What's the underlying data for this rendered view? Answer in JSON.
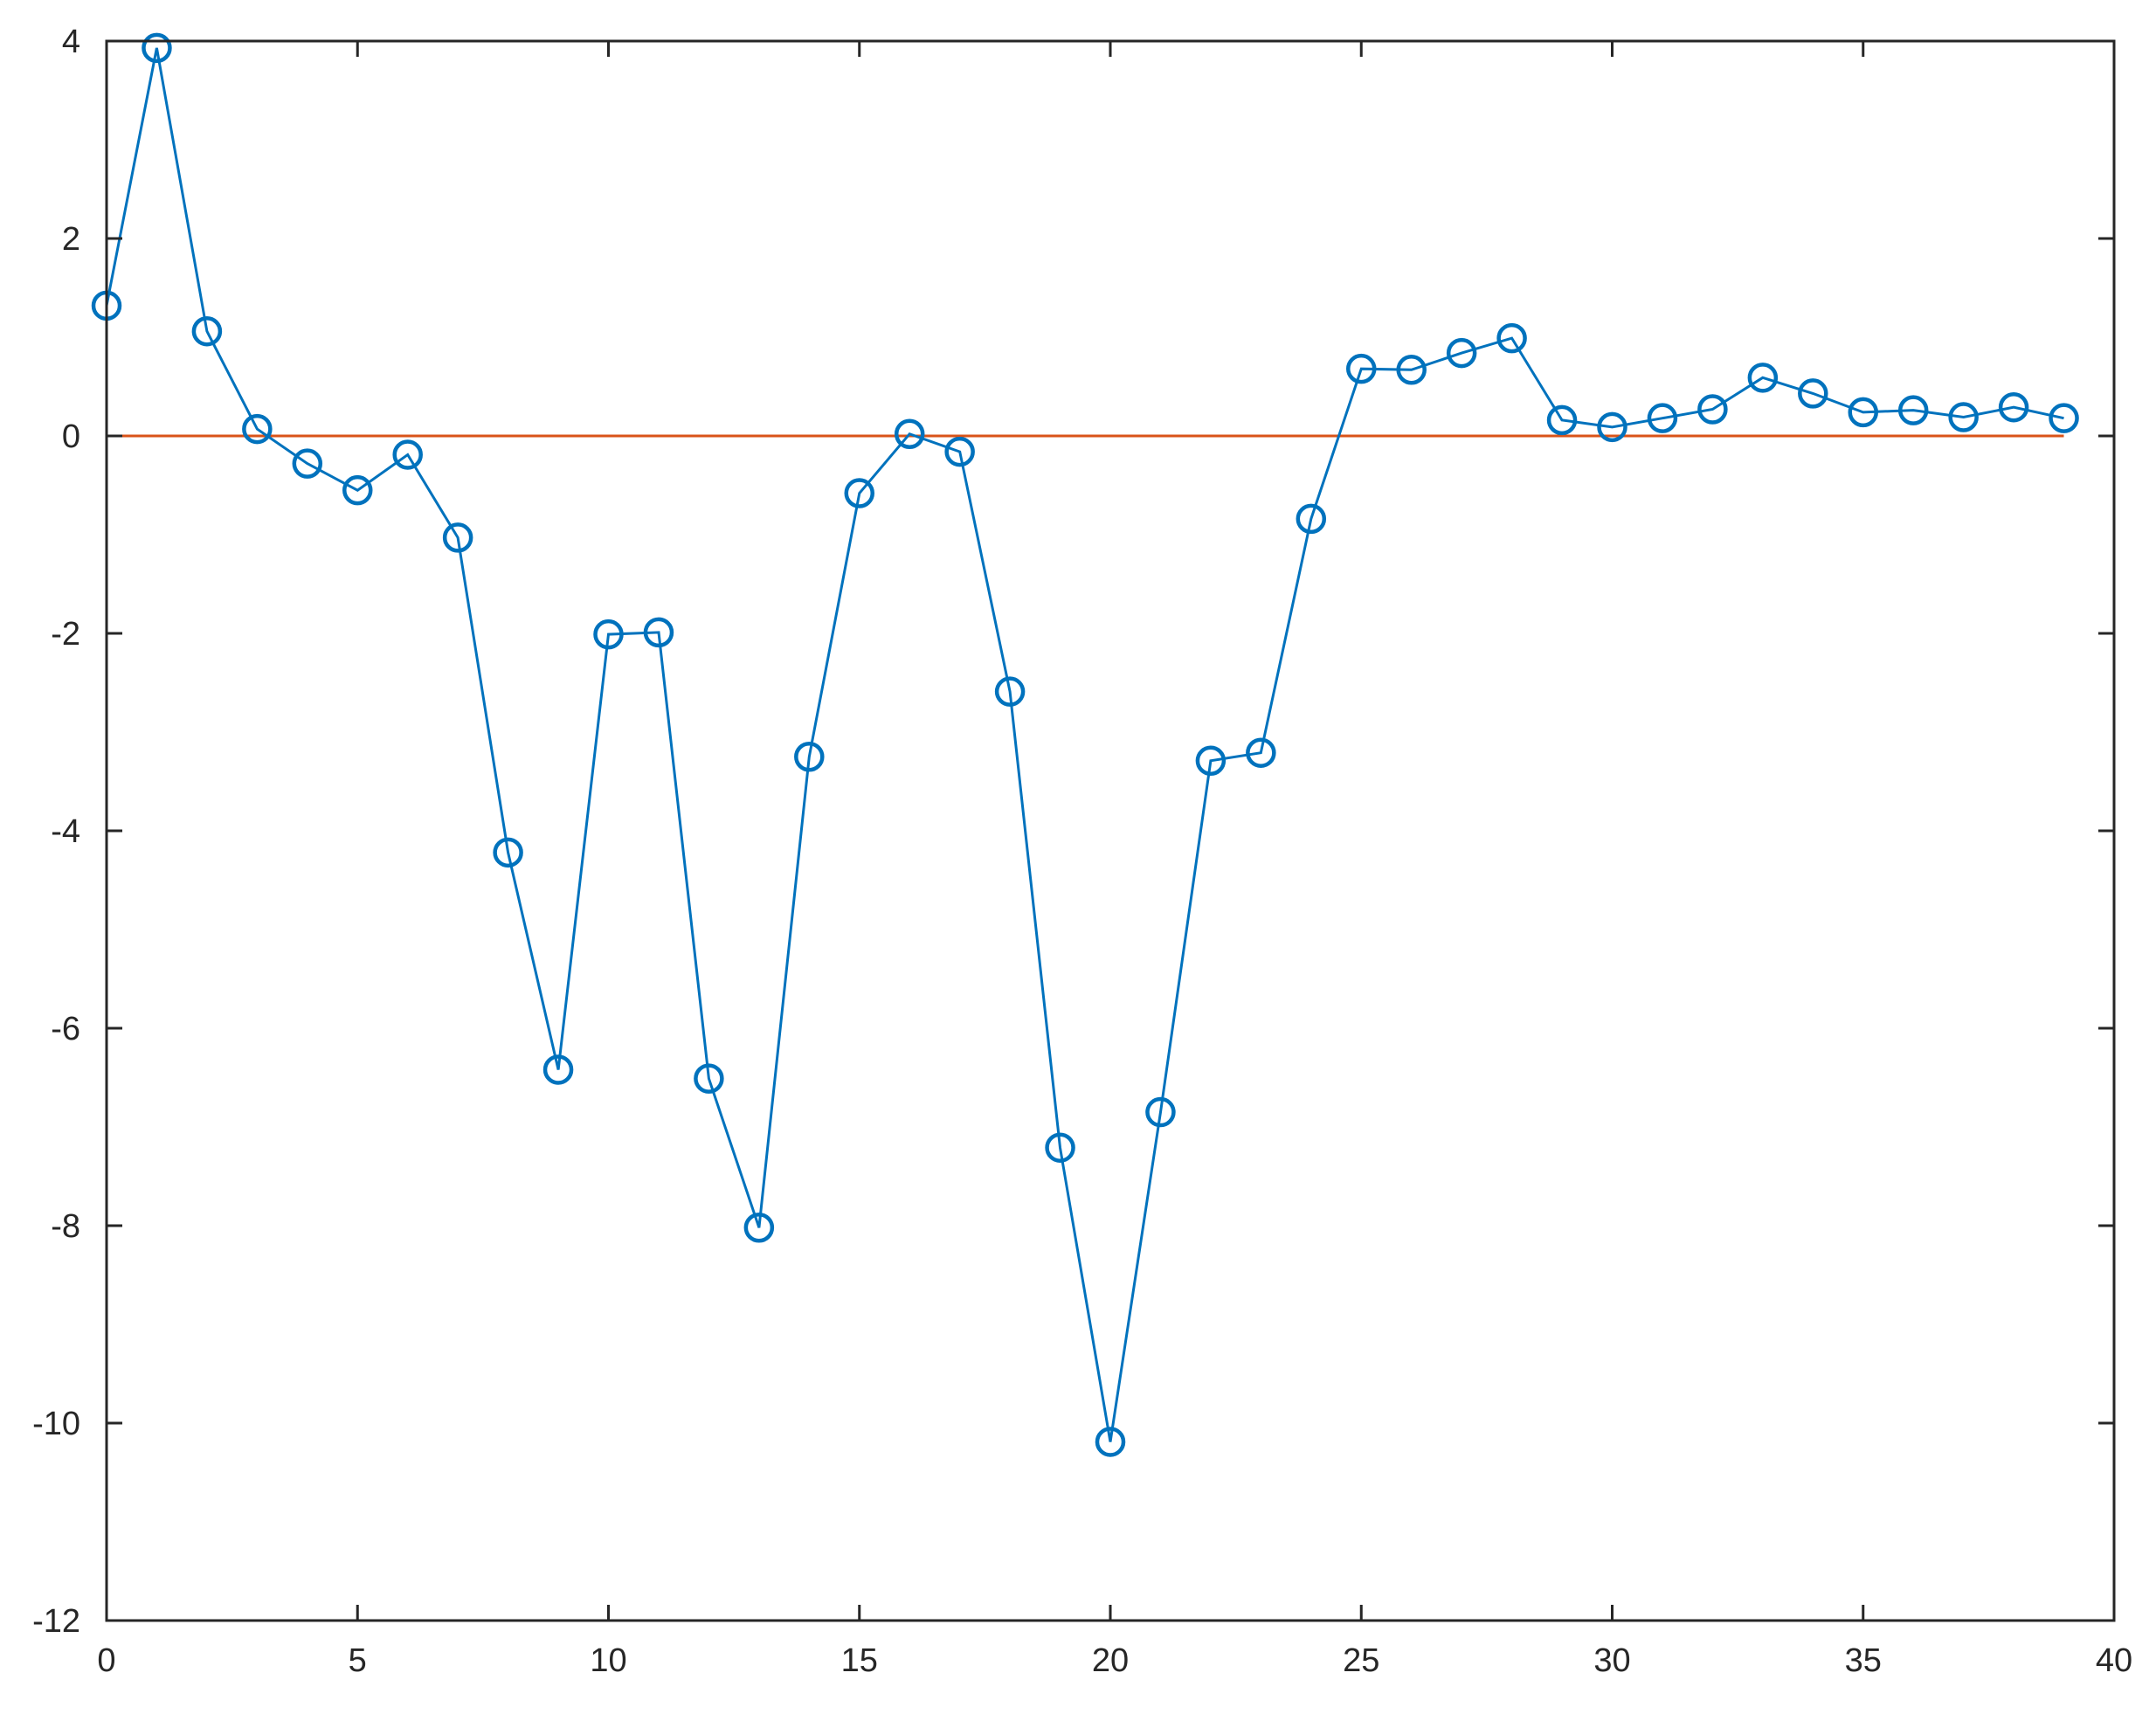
{
  "chart_data": {
    "type": "line",
    "title": "",
    "xlabel": "",
    "ylabel": "",
    "xlim": [
      0,
      40
    ],
    "ylim": [
      -12,
      4
    ],
    "grid": false,
    "x_ticks": [
      0,
      5,
      10,
      15,
      20,
      25,
      30,
      35,
      40
    ],
    "y_ticks": [
      4,
      2,
      0,
      -2,
      -4,
      -6,
      -8,
      -10,
      -12
    ],
    "x_tick_labels": [
      "0",
      "5",
      "10",
      "15",
      "20",
      "25",
      "30",
      "35",
      "40"
    ],
    "y_tick_labels": [
      "4",
      "2",
      "0",
      "-2",
      "-4",
      "-6",
      "-8",
      "-10",
      "-12"
    ],
    "series": [
      {
        "color": "#0072BD",
        "marker": "circle",
        "x": [
          0,
          1,
          2,
          3,
          4,
          5,
          6,
          7,
          8,
          9,
          10,
          11,
          12,
          13,
          14,
          15,
          16,
          17,
          18,
          19,
          20,
          21,
          22,
          23,
          24,
          25,
          26,
          27,
          28,
          29,
          30,
          31,
          32,
          33,
          34,
          35,
          36,
          37,
          38,
          39
        ],
        "y": [
          1.32,
          3.93,
          1.06,
          0.07,
          -0.28,
          -0.55,
          -0.19,
          -1.03,
          -4.22,
          -6.42,
          -2.01,
          -1.99,
          -6.51,
          -8.02,
          -3.25,
          -0.58,
          0.02,
          -0.16,
          -2.59,
          -7.21,
          -10.19,
          -6.85,
          -3.29,
          -3.21,
          -0.84,
          0.68,
          0.67,
          0.84,
          0.99,
          0.16,
          0.09,
          0.18,
          0.27,
          0.59,
          0.43,
          0.24,
          0.26,
          0.19,
          0.29,
          0.18
        ]
      },
      {
        "color": "#D95319",
        "marker": "none",
        "x": [
          0,
          39
        ],
        "y": [
          0,
          0
        ]
      }
    ]
  }
}
